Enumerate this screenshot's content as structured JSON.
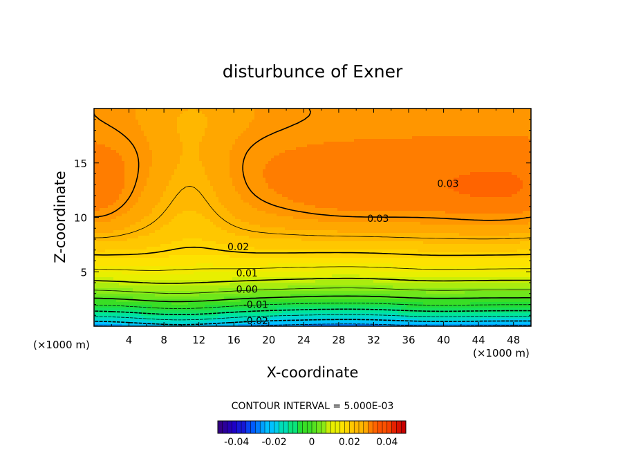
{
  "chart_data": {
    "type": "contour",
    "title": "disturbunce of Exner",
    "xlabel": "X-coordinate",
    "ylabel": "Z-coordinate",
    "x_unit": "(×1000 m)",
    "y_unit": "(×1000 m)",
    "x_range": [
      0,
      50
    ],
    "y_range": [
      0,
      20
    ],
    "x_ticks": [
      4,
      8,
      12,
      16,
      20,
      24,
      28,
      32,
      36,
      40,
      44,
      48
    ],
    "y_ticks": [
      5,
      10,
      15
    ],
    "contour_interval_text": "CONTOUR INTERVAL = 5.000E-03",
    "contour_interval": 0.005,
    "contour_labels": [
      {
        "text": "0.03",
        "x": 40.5,
        "y": 13.1
      },
      {
        "text": "0.03",
        "x": 32.5,
        "y": 9.9
      },
      {
        "text": "0.02",
        "x": 16.5,
        "y": 7.3
      },
      {
        "text": "0.01",
        "x": 17.5,
        "y": 4.9
      },
      {
        "text": "0.00",
        "x": 17.5,
        "y": 3.4
      },
      {
        "text": "-0.01",
        "x": 18.5,
        "y": 2.0
      },
      {
        "text": "-0.02",
        "x": 18.5,
        "y": 0.5
      }
    ],
    "colorbar": {
      "range": [
        -0.05,
        0.05
      ],
      "tick_labels": [
        "-0.04",
        "-0.02",
        "0",
        "0.02",
        "0.04"
      ],
      "tick_values": [
        -0.04,
        -0.02,
        0,
        0.02,
        0.04
      ]
    }
  }
}
